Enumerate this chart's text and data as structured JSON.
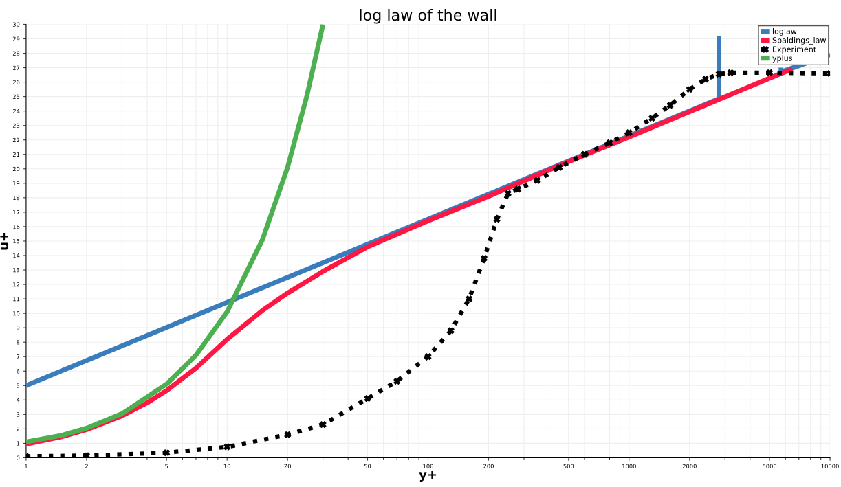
{
  "chart_data": {
    "type": "line",
    "title": "log law of the wall",
    "xlabel": "y+",
    "ylabel": "u+",
    "log": "x",
    "xlim": [
      1,
      10000
    ],
    "ylim": [
      0,
      30
    ],
    "xticks": [
      1,
      2,
      5,
      10,
      20,
      50,
      100,
      200,
      500,
      1000,
      2000,
      5000,
      10000
    ],
    "yticks": [
      0,
      1,
      2,
      3,
      4,
      5,
      6,
      7,
      8,
      9,
      10,
      11,
      12,
      13,
      14,
      15,
      16,
      17,
      18,
      19,
      20,
      21,
      22,
      23,
      24,
      25,
      26,
      27,
      28,
      29,
      30
    ],
    "grid": true,
    "legend": "top right",
    "series": [
      {
        "name": "loglaw",
        "color": "#3a7dbc",
        "x": [
          1,
          2800,
          2800,
          4000,
          5700,
          5700,
          10000
        ],
        "values": [
          5,
          24.85,
          29.2,
          null,
          27.0,
          26.7,
          27.9
        ]
      },
      {
        "name": "Spaldings_law",
        "color": "#ff1744",
        "x": [
          1,
          1.5,
          2,
          3,
          4,
          5,
          7,
          10,
          15,
          20,
          30,
          50,
          100,
          200,
          500,
          1000,
          2800,
          5700,
          6500
        ],
        "values": [
          0.95,
          1.45,
          1.95,
          2.9,
          3.8,
          4.65,
          6.2,
          8.2,
          10.2,
          11.4,
          12.9,
          14.6,
          16.4,
          18.1,
          20.5,
          22.2,
          24.8,
          26.6,
          26.9
        ]
      },
      {
        "name": "Experiment",
        "color": "#000000",
        "marker": "cross",
        "line_style": "dotted",
        "x": [
          1,
          2,
          5,
          10,
          20,
          30,
          50,
          70,
          100,
          130,
          160,
          190,
          220,
          250,
          280,
          350,
          450,
          600,
          800,
          1000,
          1300,
          1600,
          2000,
          2400,
          2800,
          3200,
          5000,
          10000
        ],
        "values": [
          0.1,
          0.15,
          0.35,
          0.75,
          1.6,
          2.3,
          4.1,
          5.3,
          7.0,
          8.8,
          11.0,
          13.8,
          16.5,
          18.3,
          18.6,
          19.2,
          20.1,
          21.0,
          21.8,
          22.5,
          23.5,
          24.4,
          25.5,
          26.2,
          26.55,
          26.65,
          26.65,
          26.6
        ]
      },
      {
        "name": "yplus",
        "color": "#4caf50",
        "x": [
          1,
          1.5,
          2,
          3,
          5,
          7,
          10,
          15,
          20,
          25,
          30
        ],
        "values": [
          1.1,
          1.55,
          2.05,
          3.05,
          5.1,
          7.1,
          10.1,
          15.1,
          20.1,
          25.1,
          30
        ]
      }
    ]
  }
}
